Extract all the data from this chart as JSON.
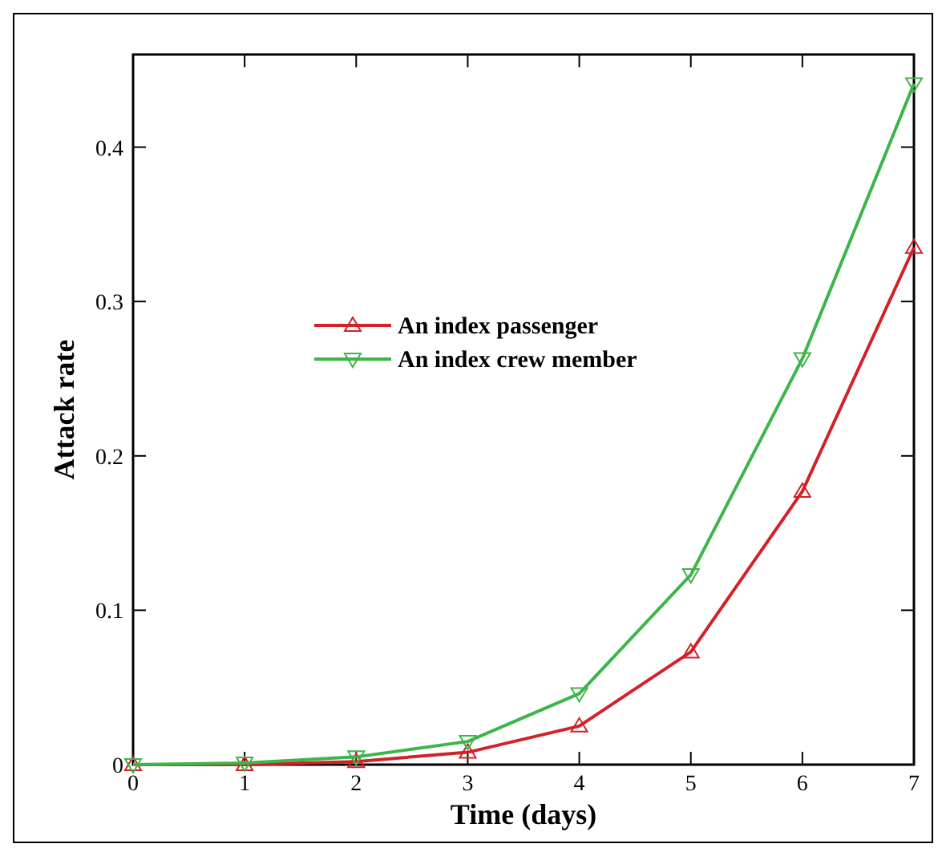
{
  "chart_data": {
    "type": "line",
    "xlabel": "Time (days)",
    "ylabel": "Attack rate",
    "x": [
      0,
      1,
      2,
      3,
      4,
      5,
      6,
      7
    ],
    "series": [
      {
        "name": "An index passenger",
        "color": "#d42027",
        "values": [
          0,
          0,
          0.002,
          0.008,
          0.025,
          0.073,
          0.177,
          0.335
        ]
      },
      {
        "name": "An index crew member",
        "color": "#3cb54a",
        "values": [
          0,
          0.001,
          0.005,
          0.015,
          0.046,
          0.123,
          0.263,
          0.441
        ]
      }
    ],
    "xlim": [
      0,
      7
    ],
    "xticks": [
      0,
      1,
      2,
      3,
      4,
      5,
      6,
      7
    ],
    "ylim": [
      0,
      0.46
    ],
    "yticks": [
      0,
      0.1,
      0.2,
      0.3,
      0.4
    ],
    "marker": "triangle",
    "line_style": "solid",
    "legend": "left",
    "grid": false
  }
}
